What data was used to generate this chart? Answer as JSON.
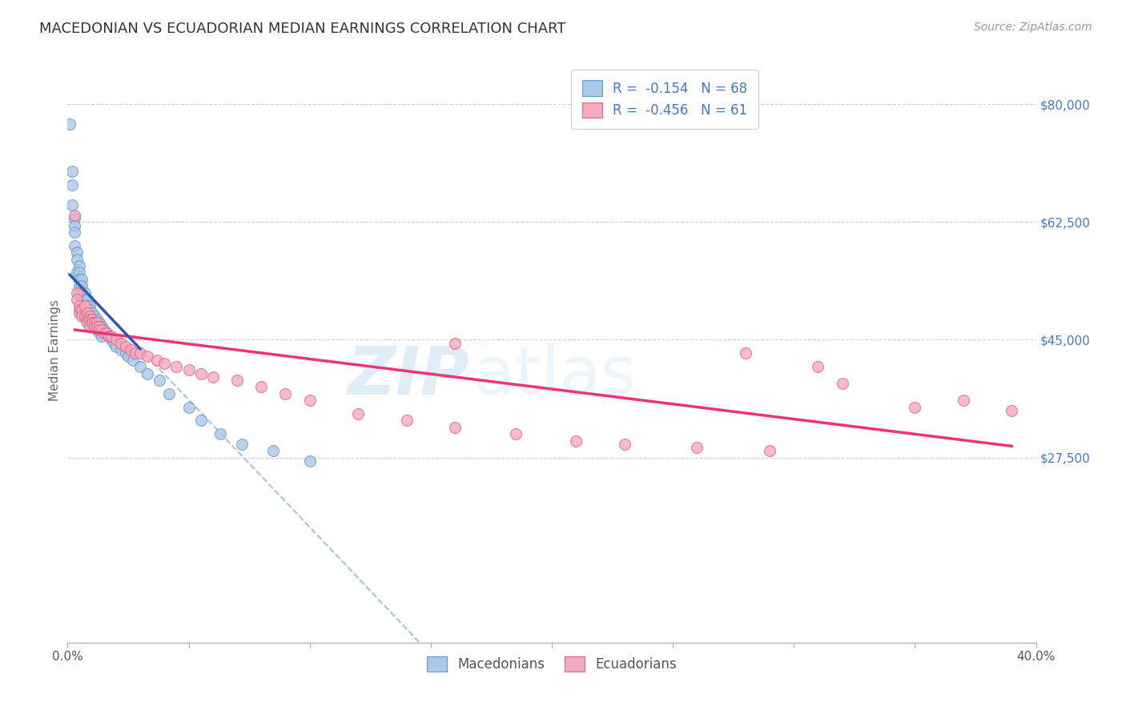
{
  "title": "MACEDONIAN VS ECUADORIAN MEDIAN EARNINGS CORRELATION CHART",
  "source": "Source: ZipAtlas.com",
  "ylabel": "Median Earnings",
  "yticks": [
    0,
    27500,
    45000,
    62500,
    80000
  ],
  "ytick_labels": [
    "",
    "$27,500",
    "$45,000",
    "$62,500",
    "$80,000"
  ],
  "xlim": [
    0.0,
    0.4
  ],
  "ylim": [
    0,
    87000
  ],
  "legend_line1": "R =  -0.154   N = 68",
  "legend_line2": "R =  -0.456   N = 61",
  "macedonian_color": "#aac8e8",
  "ecuadorian_color": "#f5aabf",
  "macedonian_edge_color": "#6699cc",
  "ecuadorian_edge_color": "#dd6688",
  "macedonian_line_color": "#3355bb",
  "ecuadorian_line_color": "#ee3377",
  "dashed_line_color": "#99bbdd",
  "watermark_zip": "ZIP",
  "watermark_atlas": "atlas",
  "mac_x": [
    0.001,
    0.002,
    0.002,
    0.002,
    0.003,
    0.003,
    0.003,
    0.003,
    0.004,
    0.004,
    0.004,
    0.005,
    0.005,
    0.005,
    0.005,
    0.005,
    0.006,
    0.006,
    0.006,
    0.006,
    0.006,
    0.006,
    0.007,
    0.007,
    0.007,
    0.007,
    0.007,
    0.007,
    0.008,
    0.008,
    0.008,
    0.008,
    0.008,
    0.009,
    0.009,
    0.009,
    0.009,
    0.01,
    0.01,
    0.01,
    0.011,
    0.011,
    0.012,
    0.012,
    0.013,
    0.013,
    0.014,
    0.014,
    0.015,
    0.016,
    0.017,
    0.018,
    0.019,
    0.02,
    0.022,
    0.024,
    0.025,
    0.027,
    0.03,
    0.033,
    0.038,
    0.042,
    0.05,
    0.055,
    0.063,
    0.072,
    0.085,
    0.1
  ],
  "mac_y": [
    77000,
    70000,
    68000,
    65000,
    63000,
    62000,
    61000,
    59000,
    58000,
    57000,
    55000,
    56000,
    55000,
    54000,
    53000,
    52000,
    54000,
    53000,
    52000,
    51000,
    50000,
    49500,
    52000,
    51000,
    50000,
    49500,
    49000,
    48500,
    51000,
    50000,
    49000,
    48500,
    48000,
    50000,
    49500,
    48500,
    47500,
    49000,
    48000,
    47000,
    48500,
    47000,
    48000,
    46500,
    47500,
    46000,
    47000,
    45500,
    46500,
    46000,
    45500,
    45000,
    44500,
    44000,
    43500,
    43000,
    42500,
    42000,
    41000,
    40000,
    39000,
    37000,
    35000,
    33000,
    31000,
    29500,
    28500,
    27000
  ],
  "ecu_x": [
    0.003,
    0.004,
    0.004,
    0.005,
    0.005,
    0.005,
    0.006,
    0.006,
    0.007,
    0.007,
    0.008,
    0.008,
    0.008,
    0.009,
    0.009,
    0.009,
    0.01,
    0.01,
    0.011,
    0.011,
    0.012,
    0.012,
    0.013,
    0.013,
    0.014,
    0.015,
    0.016,
    0.017,
    0.018,
    0.02,
    0.022,
    0.024,
    0.026,
    0.028,
    0.03,
    0.033,
    0.037,
    0.04,
    0.045,
    0.05,
    0.055,
    0.06,
    0.07,
    0.08,
    0.09,
    0.1,
    0.12,
    0.14,
    0.16,
    0.185,
    0.21,
    0.23,
    0.26,
    0.29,
    0.32,
    0.35,
    0.37,
    0.39,
    0.16,
    0.28,
    0.31
  ],
  "ecu_y": [
    63500,
    52000,
    51000,
    50000,
    49500,
    49000,
    49500,
    48500,
    50000,
    48500,
    49000,
    48000,
    47500,
    48500,
    48000,
    47000,
    48000,
    47500,
    47500,
    47000,
    47500,
    47000,
    47000,
    46500,
    46500,
    46000,
    46000,
    45500,
    45500,
    45000,
    44500,
    44000,
    43500,
    43000,
    43000,
    42500,
    42000,
    41500,
    41000,
    40500,
    40000,
    39500,
    39000,
    38000,
    37000,
    36000,
    34000,
    33000,
    32000,
    31000,
    30000,
    29500,
    29000,
    28500,
    38500,
    35000,
    36000,
    34500,
    44500,
    43000,
    41000
  ]
}
